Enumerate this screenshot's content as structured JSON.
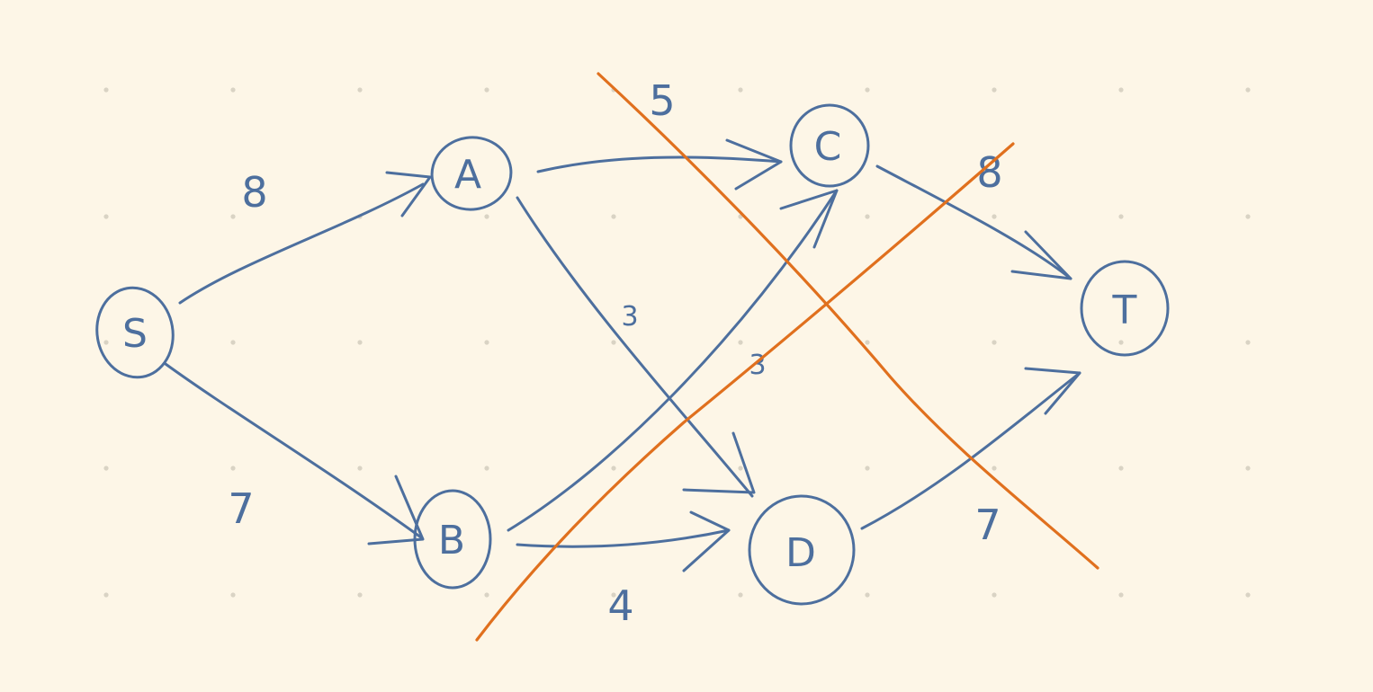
{
  "nodes": {
    "S": "S",
    "A": "A",
    "B": "B",
    "C": "C",
    "D": "D",
    "T": "T"
  },
  "edges": {
    "S_A": "8",
    "S_B": "7",
    "A_C": "5",
    "A_D": "3",
    "B_C": "3",
    "B_D": "4",
    "C_T": "8",
    "D_T": "7"
  },
  "colors": {
    "background": "#fdf6e7",
    "ink": "#4d6f9e",
    "cut_lines": "#e0701e",
    "grid_dots": "#d9d3c4"
  }
}
